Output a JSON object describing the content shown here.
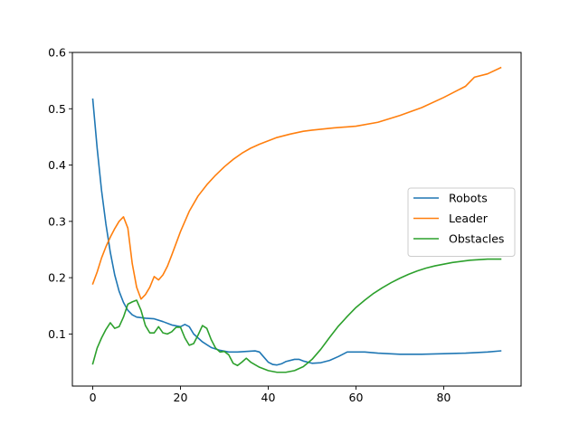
{
  "chart_data": {
    "type": "line",
    "title": "",
    "xlabel": "",
    "ylabel": "",
    "xlim": [
      -4.65,
      97.65
    ],
    "ylim": [
      0.0075,
      0.6
    ],
    "x_ticks": [
      0,
      20,
      40,
      60,
      80
    ],
    "y_ticks": [
      0.1,
      0.2,
      0.3,
      0.4,
      0.5,
      0.6
    ],
    "x_tick_labels": [
      "0",
      "20",
      "40",
      "60",
      "80"
    ],
    "y_tick_labels": [
      "0.1",
      "0.2",
      "0.3",
      "0.4",
      "0.5",
      "0.6"
    ],
    "grid": false,
    "legend_position": "center-right",
    "series": [
      {
        "name": "Robots",
        "color": "#1f77b4",
        "points": [
          [
            0,
            0.517
          ],
          [
            1,
            0.43
          ],
          [
            2,
            0.355
          ],
          [
            3,
            0.295
          ],
          [
            4,
            0.245
          ],
          [
            5,
            0.205
          ],
          [
            6,
            0.176
          ],
          [
            7,
            0.156
          ],
          [
            8,
            0.142
          ],
          [
            9,
            0.134
          ],
          [
            10,
            0.13
          ],
          [
            12,
            0.128
          ],
          [
            14,
            0.127
          ],
          [
            16,
            0.122
          ],
          [
            18,
            0.116
          ],
          [
            20,
            0.113
          ],
          [
            21,
            0.117
          ],
          [
            22,
            0.113
          ],
          [
            23,
            0.1
          ],
          [
            25,
            0.086
          ],
          [
            27,
            0.076
          ],
          [
            29,
            0.071
          ],
          [
            31,
            0.068
          ],
          [
            33,
            0.068
          ],
          [
            35,
            0.069
          ],
          [
            37,
            0.07
          ],
          [
            38,
            0.068
          ],
          [
            39,
            0.059
          ],
          [
            40,
            0.05
          ],
          [
            41,
            0.046
          ],
          [
            42,
            0.045
          ],
          [
            43,
            0.047
          ],
          [
            44,
            0.051
          ],
          [
            46,
            0.055
          ],
          [
            47,
            0.055
          ],
          [
            48,
            0.052
          ],
          [
            50,
            0.048
          ],
          [
            52,
            0.049
          ],
          [
            54,
            0.053
          ],
          [
            56,
            0.06
          ],
          [
            58,
            0.068
          ],
          [
            60,
            0.068
          ],
          [
            62,
            0.068
          ],
          [
            65,
            0.066
          ],
          [
            70,
            0.064
          ],
          [
            75,
            0.064
          ],
          [
            80,
            0.065
          ],
          [
            85,
            0.066
          ],
          [
            90,
            0.068
          ],
          [
            93,
            0.07
          ]
        ]
      },
      {
        "name": "Leader",
        "color": "#ff7f0e",
        "points": [
          [
            0,
            0.189
          ],
          [
            1,
            0.21
          ],
          [
            2,
            0.235
          ],
          [
            3,
            0.255
          ],
          [
            4,
            0.272
          ],
          [
            5,
            0.287
          ],
          [
            6,
            0.3
          ],
          [
            7,
            0.308
          ],
          [
            8,
            0.288
          ],
          [
            9,
            0.225
          ],
          [
            10,
            0.183
          ],
          [
            11,
            0.162
          ],
          [
            12,
            0.17
          ],
          [
            13,
            0.183
          ],
          [
            14,
            0.202
          ],
          [
            15,
            0.196
          ],
          [
            16,
            0.205
          ],
          [
            17,
            0.22
          ],
          [
            18,
            0.24
          ],
          [
            20,
            0.282
          ],
          [
            22,
            0.318
          ],
          [
            24,
            0.345
          ],
          [
            26,
            0.365
          ],
          [
            28,
            0.382
          ],
          [
            30,
            0.397
          ],
          [
            32,
            0.41
          ],
          [
            34,
            0.421
          ],
          [
            36,
            0.43
          ],
          [
            38,
            0.437
          ],
          [
            40,
            0.443
          ],
          [
            42,
            0.449
          ],
          [
            45,
            0.455
          ],
          [
            48,
            0.46
          ],
          [
            50,
            0.462
          ],
          [
            55,
            0.466
          ],
          [
            60,
            0.469
          ],
          [
            65,
            0.476
          ],
          [
            70,
            0.488
          ],
          [
            75,
            0.502
          ],
          [
            80,
            0.52
          ],
          [
            85,
            0.54
          ],
          [
            87,
            0.556
          ],
          [
            90,
            0.562
          ],
          [
            93,
            0.573
          ]
        ]
      },
      {
        "name": "Obstacles",
        "color": "#2ca02c",
        "points": [
          [
            0,
            0.047
          ],
          [
            1,
            0.075
          ],
          [
            2,
            0.093
          ],
          [
            3,
            0.108
          ],
          [
            4,
            0.12
          ],
          [
            5,
            0.11
          ],
          [
            6,
            0.113
          ],
          [
            7,
            0.13
          ],
          [
            8,
            0.153
          ],
          [
            9,
            0.157
          ],
          [
            10,
            0.16
          ],
          [
            11,
            0.142
          ],
          [
            12,
            0.115
          ],
          [
            13,
            0.102
          ],
          [
            14,
            0.102
          ],
          [
            15,
            0.113
          ],
          [
            16,
            0.102
          ],
          [
            17,
            0.1
          ],
          [
            18,
            0.104
          ],
          [
            19,
            0.112
          ],
          [
            20,
            0.112
          ],
          [
            21,
            0.093
          ],
          [
            22,
            0.08
          ],
          [
            23,
            0.083
          ],
          [
            24,
            0.098
          ],
          [
            25,
            0.115
          ],
          [
            26,
            0.11
          ],
          [
            27,
            0.09
          ],
          [
            28,
            0.075
          ],
          [
            29,
            0.068
          ],
          [
            30,
            0.069
          ],
          [
            31,
            0.063
          ],
          [
            32,
            0.048
          ],
          [
            33,
            0.044
          ],
          [
            34,
            0.05
          ],
          [
            35,
            0.057
          ],
          [
            36,
            0.05
          ],
          [
            38,
            0.041
          ],
          [
            40,
            0.035
          ],
          [
            42,
            0.032
          ],
          [
            44,
            0.032
          ],
          [
            46,
            0.035
          ],
          [
            48,
            0.042
          ],
          [
            50,
            0.055
          ],
          [
            52,
            0.073
          ],
          [
            54,
            0.094
          ],
          [
            56,
            0.114
          ],
          [
            58,
            0.131
          ],
          [
            60,
            0.147
          ],
          [
            62,
            0.16
          ],
          [
            64,
            0.172
          ],
          [
            66,
            0.182
          ],
          [
            68,
            0.191
          ],
          [
            70,
            0.199
          ],
          [
            72,
            0.206
          ],
          [
            74,
            0.212
          ],
          [
            76,
            0.217
          ],
          [
            78,
            0.221
          ],
          [
            80,
            0.224
          ],
          [
            82,
            0.227
          ],
          [
            84,
            0.229
          ],
          [
            86,
            0.231
          ],
          [
            88,
            0.232
          ],
          [
            90,
            0.233
          ],
          [
            93,
            0.233
          ]
        ]
      }
    ]
  }
}
